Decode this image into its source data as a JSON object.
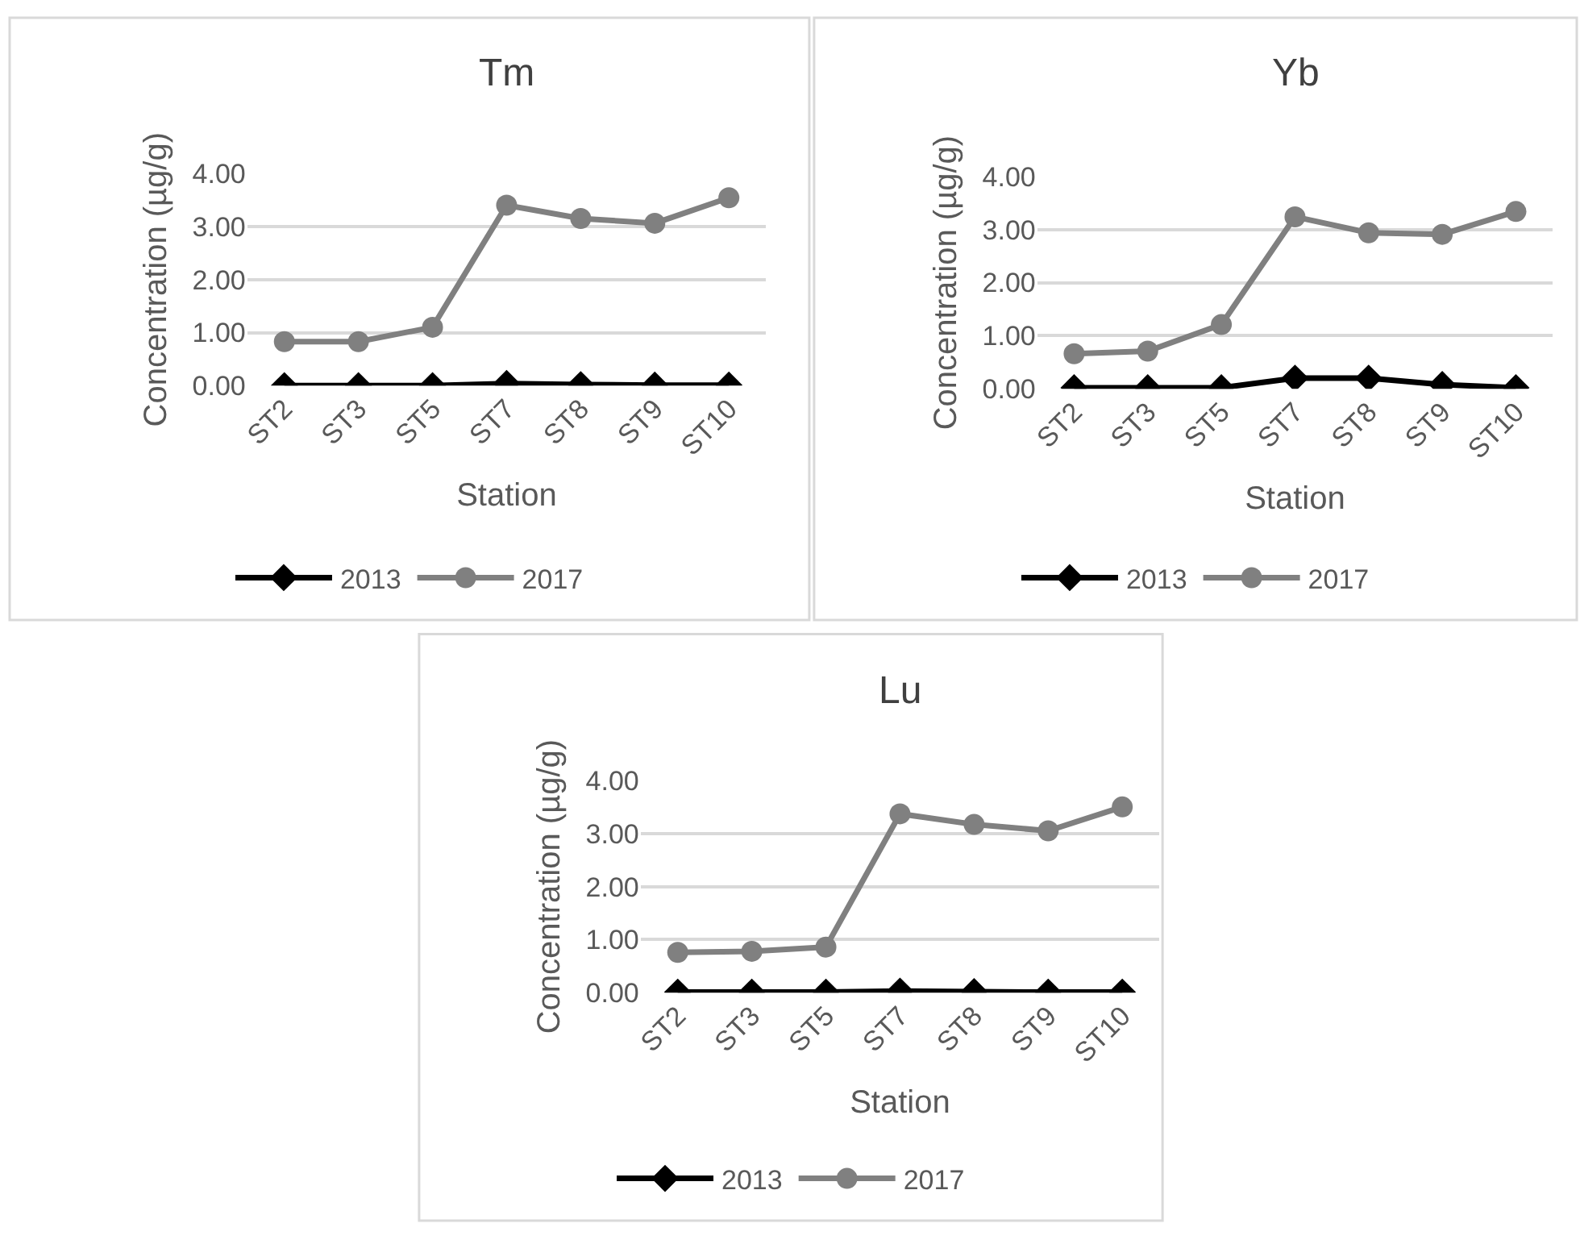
{
  "chart_data": [
    {
      "type": "line",
      "title": "Tm",
      "xlabel": "Station",
      "ylabel": "Concentration (µg/g)",
      "categories": [
        "ST2",
        "ST3",
        "ST5",
        "ST7",
        "ST8",
        "ST9",
        "ST10"
      ],
      "ylim": [
        0,
        4
      ],
      "yticks": [
        {
          "value": 0,
          "label": "0.00"
        },
        {
          "value": 1,
          "label": "1.00"
        },
        {
          "value": 2,
          "label": "2.00"
        },
        {
          "value": 3,
          "label": "3.00"
        },
        {
          "value": 4,
          "label": "4.00"
        }
      ],
      "grid": "y",
      "legend": "bottom",
      "series": [
        {
          "name": "2013",
          "color": "#000000",
          "marker": "diamond",
          "values": [
            0.0,
            0.0,
            0.0,
            0.04,
            0.02,
            0.01,
            0.01
          ]
        },
        {
          "name": "2017",
          "color": "#808080",
          "marker": "circle",
          "values": [
            0.83,
            0.83,
            1.1,
            3.4,
            3.15,
            3.06,
            3.54
          ]
        }
      ]
    },
    {
      "type": "line",
      "title": "Yb",
      "xlabel": "Station",
      "ylabel": "Concentration (µg/g)",
      "categories": [
        "ST2",
        "ST3",
        "ST5",
        "ST7",
        "ST8",
        "ST9",
        "ST10"
      ],
      "ylim": [
        0,
        4
      ],
      "yticks": [
        {
          "value": 0,
          "label": "0.00"
        },
        {
          "value": 1,
          "label": "1.00"
        },
        {
          "value": 2,
          "label": "2.00"
        },
        {
          "value": 3,
          "label": "3.00"
        },
        {
          "value": 4,
          "label": "4.00"
        }
      ],
      "grid": "y",
      "legend": "bottom",
      "series": [
        {
          "name": "2013",
          "color": "#000000",
          "marker": "diamond",
          "values": [
            0.02,
            0.02,
            0.02,
            0.2,
            0.2,
            0.08,
            0.02
          ]
        },
        {
          "name": "2017",
          "color": "#808080",
          "marker": "circle",
          "values": [
            0.66,
            0.71,
            1.21,
            3.24,
            2.94,
            2.91,
            3.34
          ]
        }
      ]
    },
    {
      "type": "line",
      "title": "Lu",
      "xlabel": "Station",
      "ylabel": "Concentration (µg/g)",
      "categories": [
        "ST2",
        "ST3",
        "ST5",
        "ST7",
        "ST8",
        "ST9",
        "ST10"
      ],
      "ylim": [
        0,
        4
      ],
      "yticks": [
        {
          "value": 0,
          "label": "0.00"
        },
        {
          "value": 1,
          "label": "1.00"
        },
        {
          "value": 2,
          "label": "2.00"
        },
        {
          "value": 3,
          "label": "3.00"
        },
        {
          "value": 4,
          "label": "4.00"
        }
      ],
      "grid": "y",
      "legend": "bottom",
      "series": [
        {
          "name": "2013",
          "color": "#000000",
          "marker": "diamond",
          "values": [
            0.01,
            0.01,
            0.01,
            0.03,
            0.02,
            0.01,
            0.01
          ]
        },
        {
          "name": "2017",
          "color": "#808080",
          "marker": "circle",
          "values": [
            0.76,
            0.78,
            0.86,
            3.37,
            3.17,
            3.05,
            3.5
          ]
        }
      ]
    }
  ]
}
